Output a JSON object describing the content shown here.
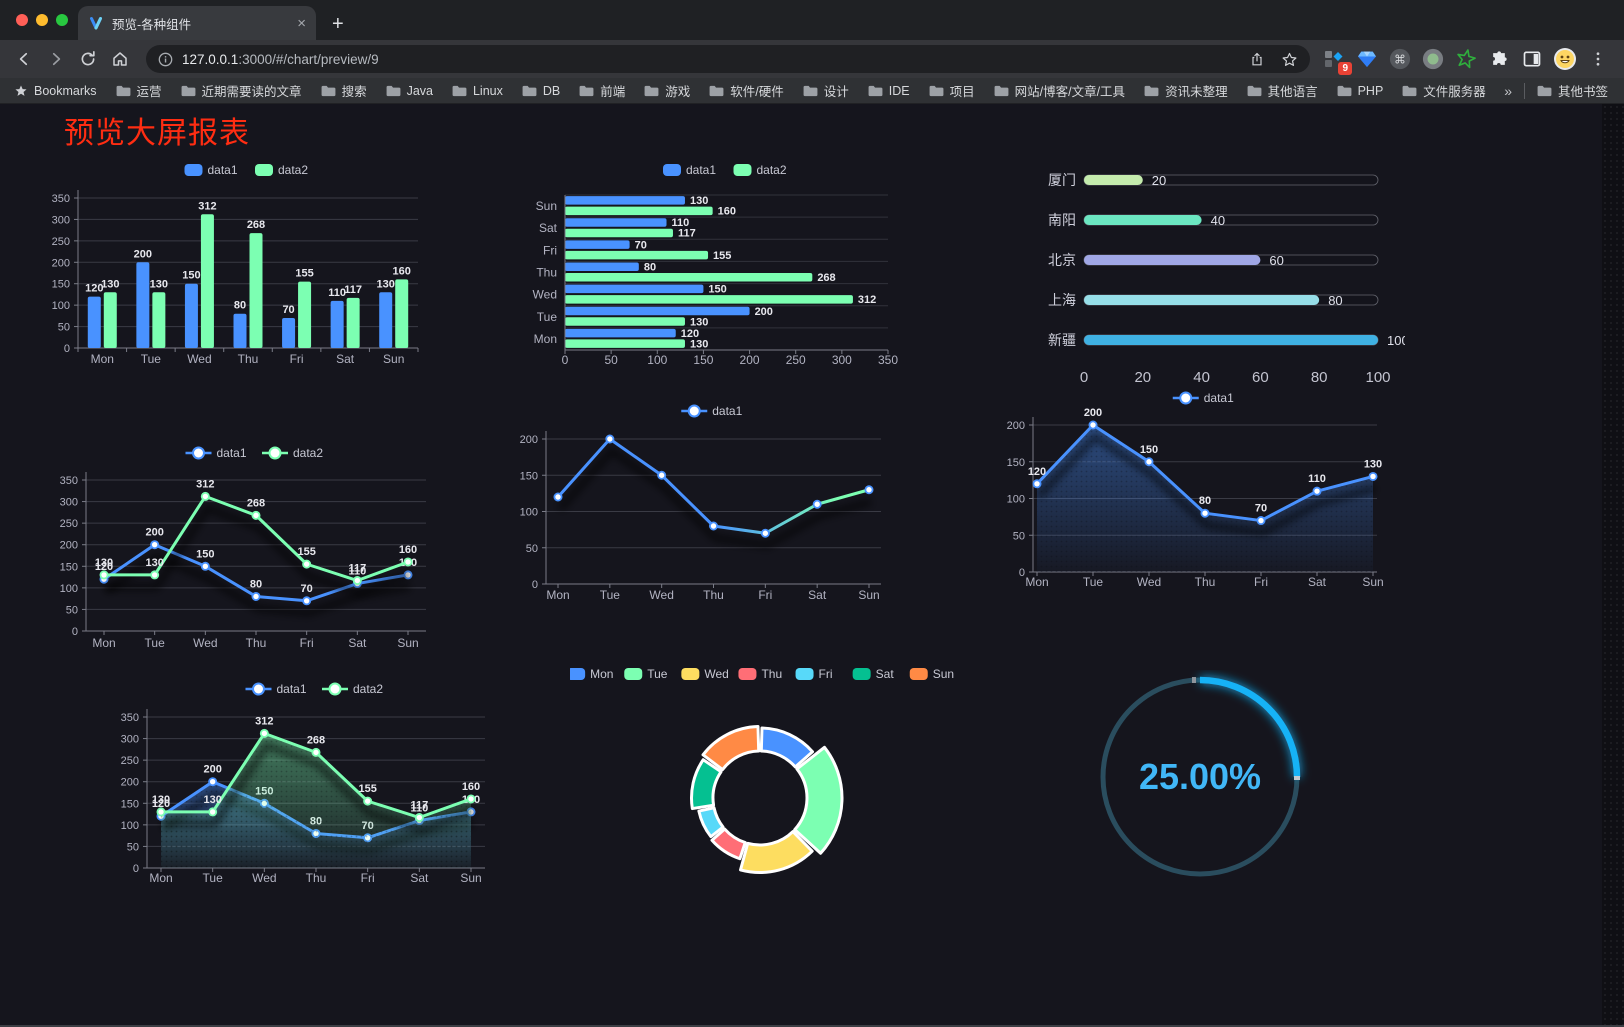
{
  "browser": {
    "window_controls": {
      "close": "#ff5f57",
      "minimize": "#febc2e",
      "zoom": "#28c840"
    },
    "tab": {
      "title": "预览-各种组件",
      "close_glyph": "×"
    },
    "new_tab_glyph": "+",
    "url": {
      "host": "127.0.0.1",
      "rest": ":3000/#/chart/preview/9"
    },
    "extensions_badge": "9",
    "bookmarks_bar": {
      "bookmarks_label": "Bookmarks",
      "folders": [
        "运营",
        "近期需要读的文章",
        "搜索",
        "Java",
        "Linux",
        "DB",
        "前端",
        "游戏",
        "软件/硬件",
        "设计",
        "IDE",
        "项目",
        "网站/博客/文章/工具",
        "资讯未整理",
        "其他语言",
        "PHP",
        "文件服务器"
      ],
      "overflow_glyph": "»",
      "other_bookmarks": "其他书签"
    }
  },
  "page": {
    "title": "预览大屏报表",
    "title_color": "#ff2d12",
    "background": "#15151d",
    "axis_label_color": "#b2b3c2",
    "grid_line_color": "#3a3b45",
    "axis_line_color": "#7a7c88",
    "data_label_color": "#e8e8ee"
  },
  "chart_data": [
    {
      "id": "bar-grouped-vertical",
      "type": "bar",
      "categories": [
        "Mon",
        "Tue",
        "Wed",
        "Thu",
        "Fri",
        "Sat",
        "Sun"
      ],
      "series": [
        {
          "name": "data1",
          "color": "#4992ff",
          "values": [
            120,
            200,
            150,
            80,
            70,
            110,
            130
          ]
        },
        {
          "name": "data2",
          "color": "#7cffb2",
          "values": [
            130,
            130,
            312,
            268,
            155,
            117,
            160
          ]
        }
      ],
      "ylim": [
        0,
        350
      ],
      "ytick_step": 50,
      "legend_position": "top",
      "grid": true,
      "labels": true
    },
    {
      "id": "bar-grouped-horizontal",
      "type": "bar-horizontal",
      "categories": [
        "Mon",
        "Tue",
        "Wed",
        "Thu",
        "Fri",
        "Sat",
        "Sun"
      ],
      "category_order_top_to_bottom": [
        "Sun",
        "Sat",
        "Fri",
        "Thu",
        "Wed",
        "Tue",
        "Mon"
      ],
      "series": [
        {
          "name": "data1",
          "color": "#4992ff",
          "values": [
            120,
            200,
            150,
            80,
            70,
            110,
            130
          ]
        },
        {
          "name": "data2",
          "color": "#7cffb2",
          "values": [
            130,
            130,
            312,
            268,
            155,
            117,
            160
          ]
        }
      ],
      "xlim": [
        0,
        350
      ],
      "xtick_step": 50,
      "legend_position": "top",
      "labels": true
    },
    {
      "id": "progress-bars",
      "type": "bar-horizontal-progress",
      "categories": [
        "厦门",
        "南阳",
        "北京",
        "上海",
        "新疆"
      ],
      "values": [
        20,
        40,
        60,
        80,
        100
      ],
      "colors": [
        "#c4ebad",
        "#6be6c1",
        "#a0a7e6",
        "#96dee8",
        "#3fb1e3"
      ],
      "xlim": [
        0,
        100
      ],
      "xticks": [
        0,
        20,
        40,
        60,
        80,
        100
      ]
    },
    {
      "id": "line-two-series",
      "type": "line",
      "categories": [
        "Mon",
        "Tue",
        "Wed",
        "Thu",
        "Fri",
        "Sat",
        "Sun"
      ],
      "series": [
        {
          "name": "data1",
          "color": "#4992ff",
          "values": [
            120,
            200,
            150,
            80,
            70,
            110,
            130
          ]
        },
        {
          "name": "data2",
          "color": "#7cffb2",
          "values": [
            130,
            130,
            312,
            268,
            155,
            117,
            160
          ]
        }
      ],
      "ylim": [
        0,
        350
      ],
      "ytick_step": 50,
      "legend_position": "top",
      "labels": true
    },
    {
      "id": "line-gradient",
      "type": "line",
      "categories": [
        "Mon",
        "Tue",
        "Wed",
        "Thu",
        "Fri",
        "Sat",
        "Sun"
      ],
      "series": [
        {
          "name": "data1",
          "color": "#4992ff",
          "gradient_to": "#7cffb2",
          "values": [
            120,
            200,
            150,
            80,
            70,
            110,
            130
          ]
        }
      ],
      "ylim": [
        0,
        200
      ],
      "ytick_step": 50,
      "legend_position": "top",
      "labels": false
    },
    {
      "id": "line-area-blue",
      "type": "area",
      "categories": [
        "Mon",
        "Tue",
        "Wed",
        "Thu",
        "Fri",
        "Sat",
        "Sun"
      ],
      "series": [
        {
          "name": "data1",
          "color": "#4992ff",
          "values": [
            120,
            200,
            150,
            80,
            70,
            110,
            130
          ]
        }
      ],
      "ylim": [
        0,
        200
      ],
      "ytick_step": 50,
      "legend_position": "top",
      "labels": true
    },
    {
      "id": "area-two-series",
      "type": "area",
      "categories": [
        "Mon",
        "Tue",
        "Wed",
        "Thu",
        "Fri",
        "Sat",
        "Sun"
      ],
      "series": [
        {
          "name": "data1",
          "color": "#4992ff",
          "values": [
            120,
            200,
            150,
            80,
            70,
            110,
            130
          ]
        },
        {
          "name": "data2",
          "color": "#7cffb2",
          "values": [
            130,
            130,
            312,
            268,
            155,
            117,
            160
          ]
        }
      ],
      "ylim": [
        0,
        350
      ],
      "ytick_step": 50,
      "legend_position": "top",
      "labels": true
    },
    {
      "id": "donut",
      "type": "pie",
      "rose": true,
      "categories": [
        "Mon",
        "Tue",
        "Wed",
        "Thu",
        "Fri",
        "Sat",
        "Sun"
      ],
      "values": [
        120,
        200,
        150,
        80,
        70,
        110,
        130
      ],
      "colors": [
        "#4992ff",
        "#7cffb2",
        "#fddd60",
        "#ff6e76",
        "#58d9f9",
        "#05c091",
        "#ff8a45"
      ],
      "legend_position": "top",
      "border_color": "#ffffff"
    },
    {
      "id": "gauge",
      "type": "gauge",
      "percent": 25,
      "value_label": "25.00%",
      "progress_color": "#18b2f6",
      "track_color": "#2a4d5e",
      "text_color": "#41b7f7"
    }
  ]
}
